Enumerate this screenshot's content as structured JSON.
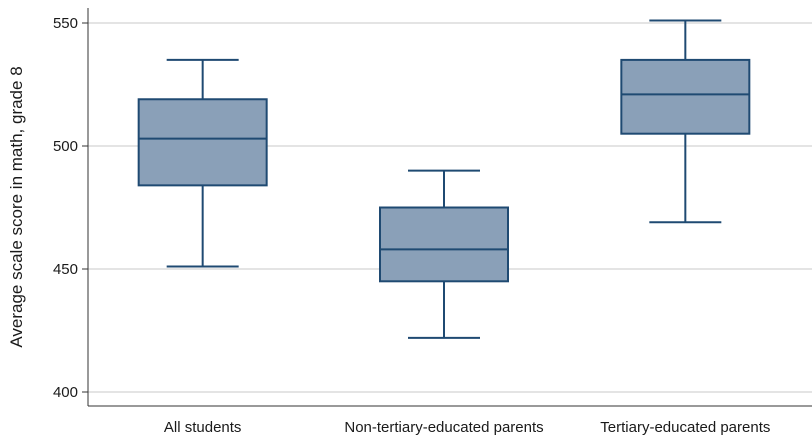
{
  "chart_data": {
    "type": "boxplot",
    "title": "",
    "xlabel": "",
    "ylabel": "Average scale score in math, grade 8",
    "ylim": [
      395,
      555
    ],
    "yticks": [
      400,
      450,
      500,
      550
    ],
    "grid": "horizontal",
    "categories": [
      "All students",
      "Non-tertiary-educated parents",
      "Tertiary-educated parents"
    ],
    "boxes": [
      {
        "category": "All students",
        "min": 451,
        "q1": 484,
        "median": 503,
        "q3": 519,
        "max": 535
      },
      {
        "category": "Non-tertiary-educated parents",
        "min": 422,
        "q1": 445,
        "median": 458,
        "q3": 475,
        "max": 490
      },
      {
        "category": "Tertiary-educated parents",
        "min": 469,
        "q1": 505,
        "median": 521,
        "q3": 535,
        "max": 551
      }
    ],
    "colors": {
      "box_fill": "#8aa0b8",
      "box_stroke": "#1f4a72",
      "grid": "#c8c8c8",
      "axis": "#333333"
    }
  }
}
